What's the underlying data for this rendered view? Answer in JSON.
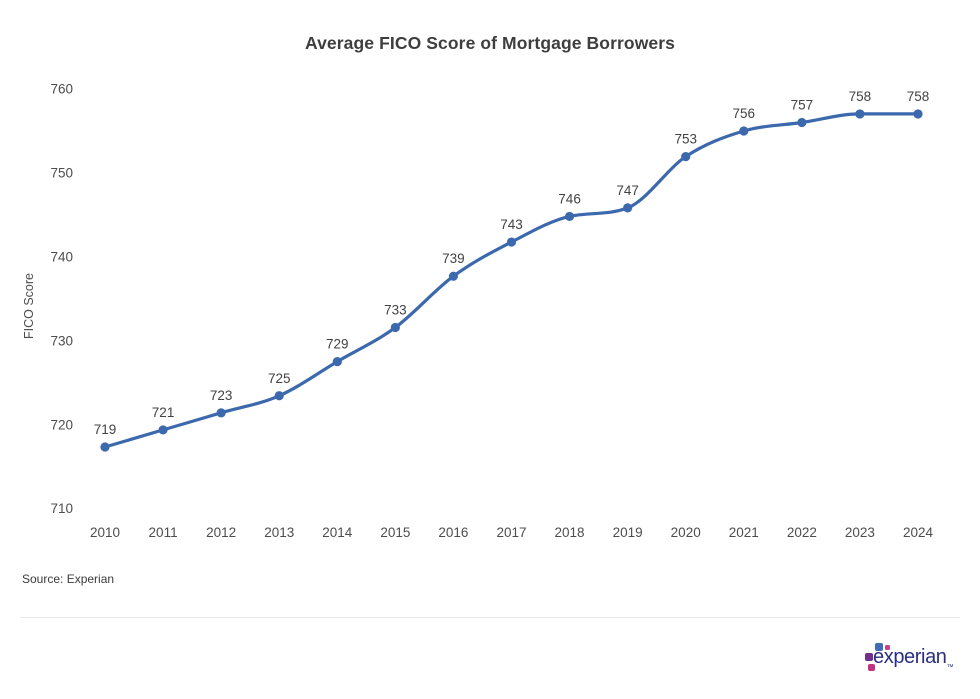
{
  "chart": {
    "title": "Average FICO Score of Mortgage Borrowers"
  },
  "chart_data": {
    "type": "line",
    "title": "Average FICO Score of Mortgage Borrowers",
    "xlabel": "",
    "ylabel": "FICO Score",
    "categories": [
      "2010",
      "2011",
      "2012",
      "2013",
      "2014",
      "2015",
      "2016",
      "2017",
      "2018",
      "2019",
      "2020",
      "2021",
      "2022",
      "2023",
      "2024"
    ],
    "values": [
      719,
      721,
      723,
      725,
      729,
      733,
      739,
      743,
      746,
      747,
      753,
      756,
      757,
      758,
      758
    ],
    "y_ticks": [
      710,
      720,
      730,
      740,
      750,
      760
    ],
    "ylim": [
      710,
      760
    ],
    "grid": false,
    "legend": "none",
    "data_labels": true,
    "line_color": "#3c69ae",
    "point_color": "#3c69ae",
    "value_label_color": "#424242",
    "tick_label_color": "#4d4d4d"
  },
  "footer": {
    "source": "Source: Experian",
    "logo_text": "experian",
    "logo_tm": "™",
    "logo_colors": {
      "text": "#2b2f82",
      "blue_block": "#3f6eb5",
      "pink_block": "#c9408f",
      "purple_block": "#712f8e",
      "magenta_block": "#c2327e"
    }
  }
}
